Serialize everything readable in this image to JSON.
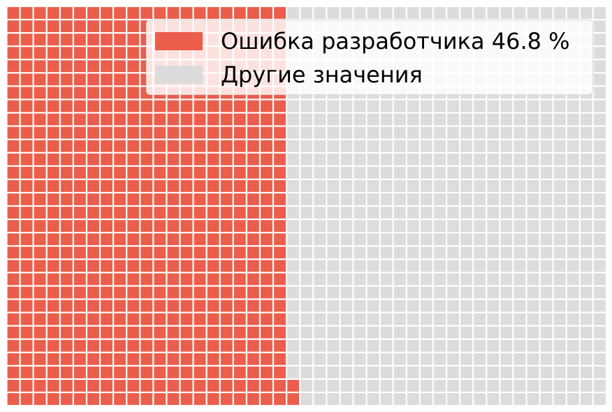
{
  "chart_data": {
    "type": "waffle",
    "grid": {
      "rows": 30,
      "columns": 45,
      "fill_order": "column-major, bottom-to-top, left-to-right"
    },
    "total_cells": 1350,
    "categories": [
      {
        "label": "Ошибка разработчика 46.8 %",
        "percent": 46.8,
        "cells": 632,
        "color": "#eb5e4b"
      },
      {
        "label": "Другие значения",
        "percent": 53.2,
        "cells": 718,
        "color": "#dcdcdc"
      }
    ],
    "legend": {
      "placement": "top-right"
    },
    "title": "",
    "xlabel": "",
    "ylabel": ""
  }
}
